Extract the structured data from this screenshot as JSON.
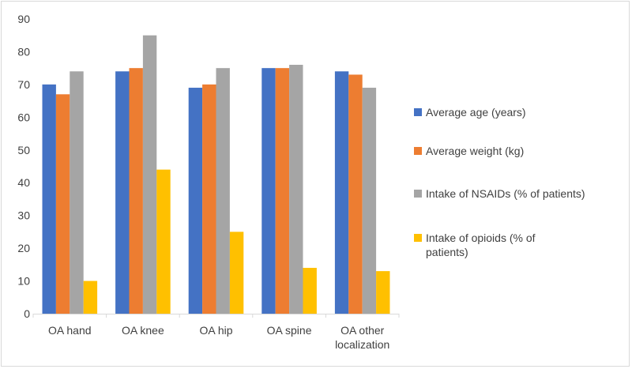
{
  "chart_data": {
    "type": "bar",
    "categories": [
      "OA hand",
      "OA knee",
      "OA hip",
      "OA spine",
      "OA other localization"
    ],
    "category_lines": [
      [
        "OA hand"
      ],
      [
        "OA knee"
      ],
      [
        "OA hip"
      ],
      [
        "OA spine"
      ],
      [
        "OA other",
        "localization"
      ]
    ],
    "series": [
      {
        "name": "Average age (years)",
        "color": "#4472c4",
        "values": [
          70,
          74,
          69,
          75,
          74
        ]
      },
      {
        "name": "Average weight (kg)",
        "color": "#ed7d31",
        "values": [
          67,
          75,
          70,
          75,
          73
        ]
      },
      {
        "name": "Intake of  NSAIDs (% of patients)",
        "color": "#a5a5a5",
        "values": [
          74,
          85,
          75,
          76,
          69
        ]
      },
      {
        "name": "Intake of opioids  (% of patients)",
        "color": "#ffc000",
        "values": [
          10,
          44,
          25,
          14,
          13
        ]
      }
    ],
    "legend_lines": [
      [
        "Average age (years)"
      ],
      [
        "Average weight (kg)"
      ],
      [
        "Intake of  NSAIDs (% of patients)"
      ],
      [
        "Intake of opioids  (% of",
        "patients)"
      ]
    ],
    "yticks": [
      "0",
      "10",
      "20",
      "30",
      "40",
      "50",
      "60",
      "70",
      "80",
      "90"
    ],
    "ylim": [
      0,
      90
    ],
    "grid": false,
    "legend_position": "right",
    "title": "",
    "xlabel": "",
    "ylabel": ""
  }
}
